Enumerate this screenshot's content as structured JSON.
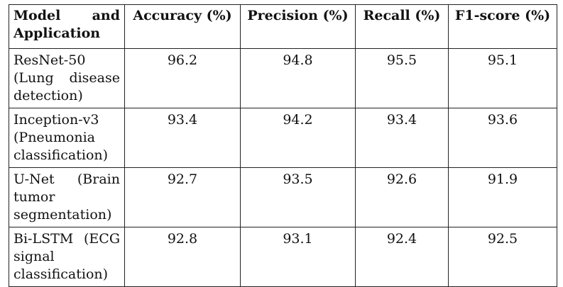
{
  "table": {
    "headers": [
      "Model and Application",
      "Accuracy (%)",
      "Precision (%)",
      "Recall (%)",
      "F1-score (%)"
    ],
    "rows": [
      {
        "model": "ResNet-50 (Lung disease detection)",
        "accuracy": "96.2",
        "precision": "94.8",
        "recall": "95.5",
        "f1": "95.1"
      },
      {
        "model": "Inception-v3 (Pneumonia classification)",
        "accuracy": "93.4",
        "precision": "94.2",
        "recall": "93.4",
        "f1": "93.6"
      },
      {
        "model": "U-Net (Brain tumor segmentation)",
        "accuracy": "92.7",
        "precision": "93.5",
        "recall": "92.6",
        "f1": "91.9"
      },
      {
        "model": "Bi-LSTM (ECG signal classification)",
        "accuracy": "92.8",
        "precision": "93.1",
        "recall": "92.4",
        "f1": "92.5"
      }
    ]
  }
}
